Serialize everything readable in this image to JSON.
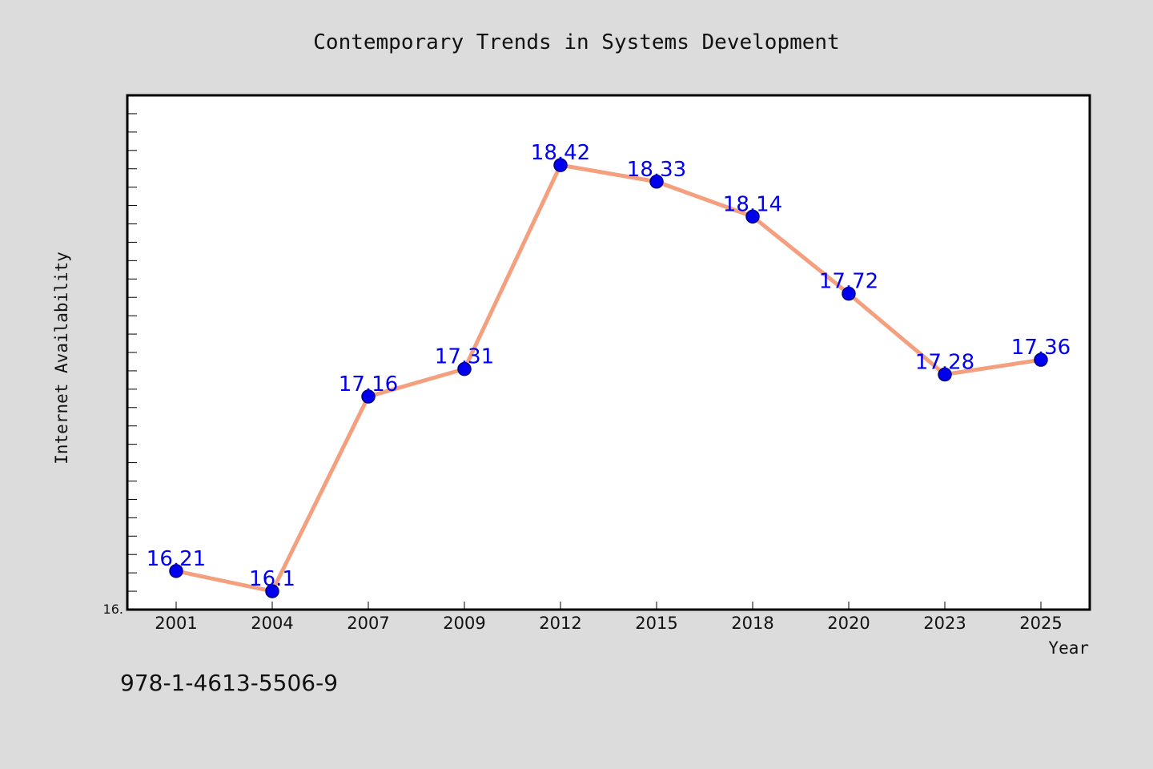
{
  "chart_data": {
    "type": "line",
    "title": "Contemporary Trends in Systems Development",
    "xlabel": "Year",
    "ylabel": "Internet Availability",
    "categories": [
      "2001",
      "2004",
      "2007",
      "2009",
      "2012",
      "2015",
      "2018",
      "2020",
      "2023",
      "2025"
    ],
    "series": [
      {
        "values": [
          16.21,
          16.1,
          17.16,
          17.31,
          18.42,
          18.33,
          18.14,
          17.72,
          17.28,
          17.36
        ]
      }
    ],
    "data_labels": [
      "16.21",
      "16.1",
      "17.16",
      "17.31",
      "18.42",
      "18.33",
      "18.14",
      "17.72",
      "17.28",
      "17.36"
    ],
    "ylim": [
      16.0,
      18.8
    ],
    "y_min_label": "16.",
    "grid": false,
    "legend": "none",
    "colors": {
      "background": "#dcdcdc",
      "plot_background": "#ffffff",
      "line": "#f4a07e",
      "marker_fill": "#0000ee",
      "marker_edge": "#000080",
      "data_label": "#0000ee"
    }
  },
  "footer": {
    "isbn": "978-1-4613-5506-9"
  }
}
